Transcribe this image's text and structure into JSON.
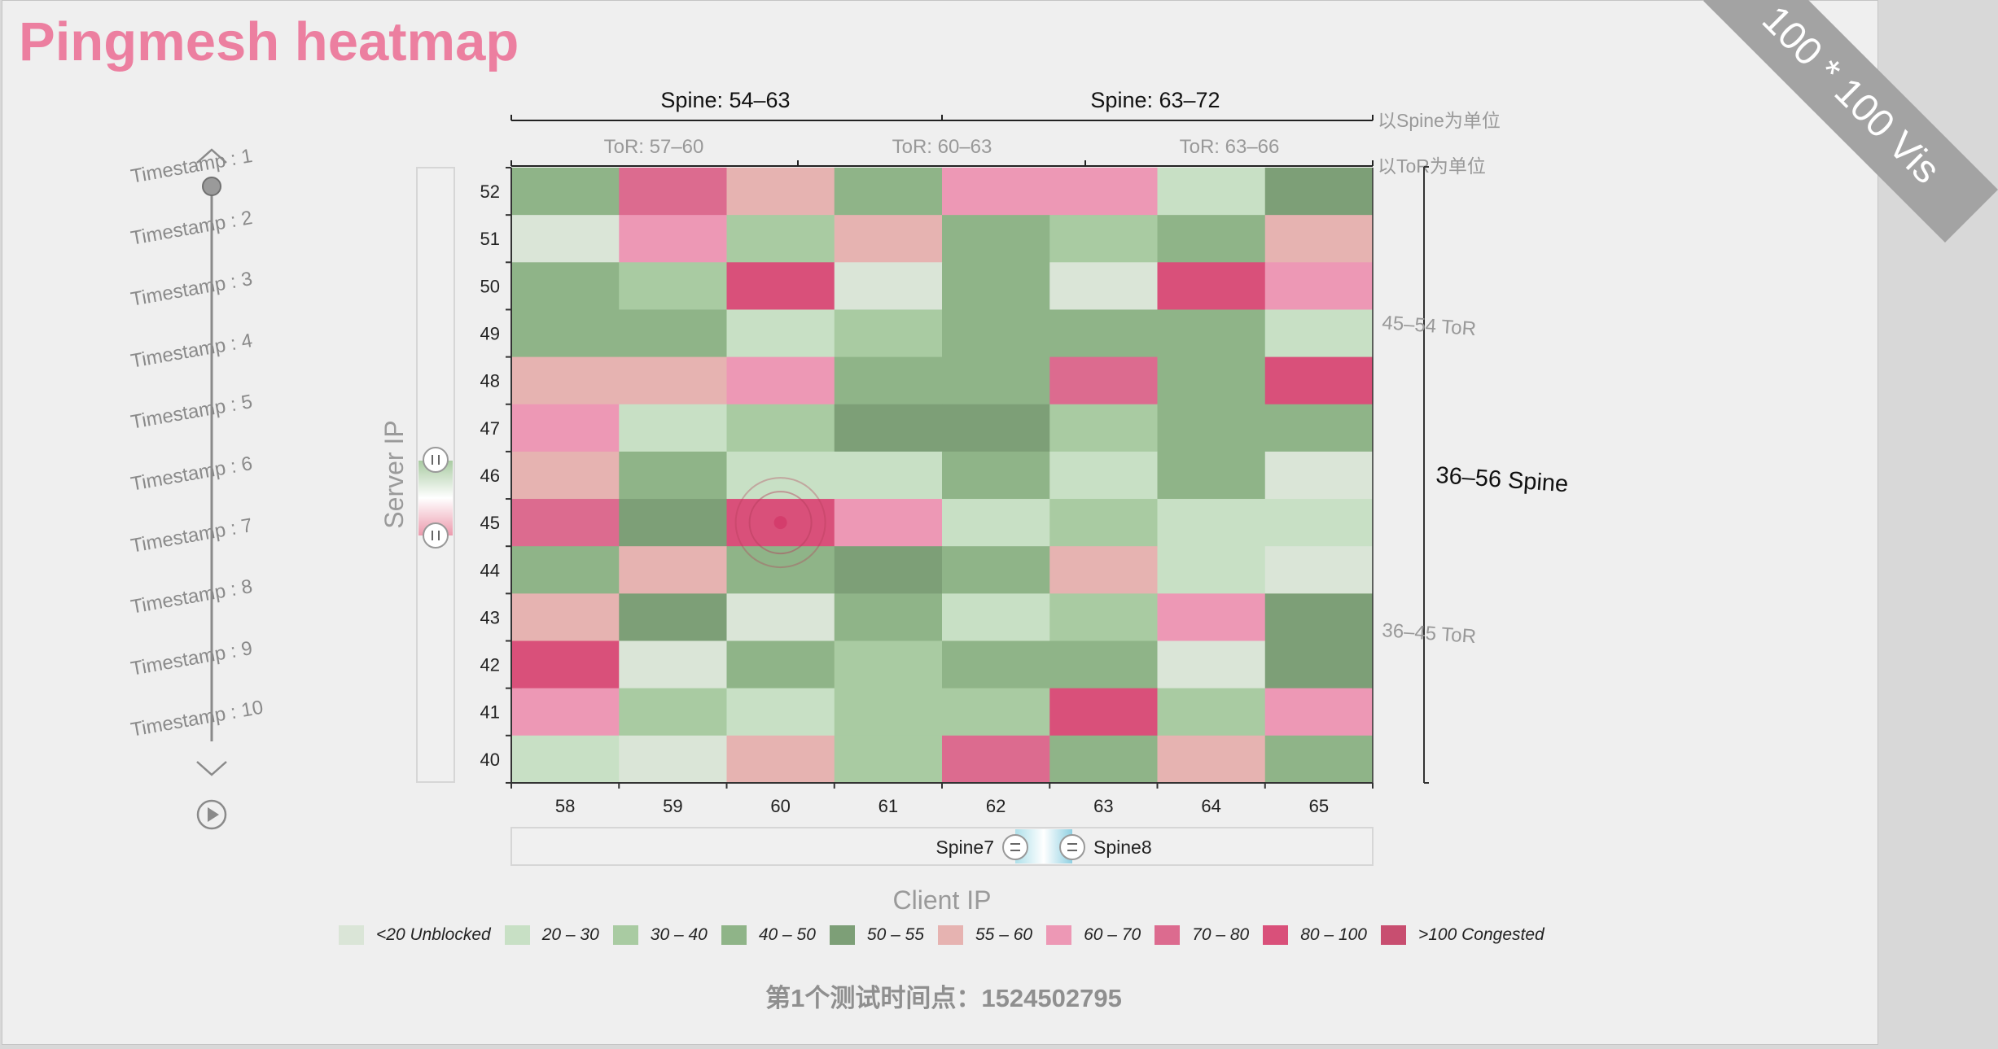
{
  "title": "Pingmesh heatmap",
  "ribbon": "100 * 100 Vis",
  "timeline": {
    "labels": [
      "Timestamp : 1",
      "Timestamp : 2",
      "Timestamp : 3",
      "Timestamp : 4",
      "Timestamp : 5",
      "Timestamp : 6",
      "Timestamp : 7",
      "Timestamp : 8",
      "Timestamp : 9",
      "Timestamp : 10"
    ],
    "current_index": 1
  },
  "top_axis": {
    "spines": [
      "Spine: 54–63",
      "Spine: 63–72"
    ],
    "spine_unit": "以Spine为单位",
    "tors": [
      "ToR: 57–60",
      "ToR: 60–63",
      "ToR: 63–66"
    ],
    "tor_unit": "以ToR为单位"
  },
  "right_axis": {
    "tor_upper": "45–54 ToR",
    "tor_lower": "36–45 ToR",
    "spine": "36–56 Spine"
  },
  "y_slider_label": "Server IP",
  "x_slider": {
    "left": "Spine7",
    "right": "Spine8"
  },
  "chart_data": {
    "type": "heatmap",
    "xlabel": "Client IP",
    "ylabel": "Server IP",
    "x": [
      58,
      59,
      60,
      61,
      62,
      63,
      64,
      65
    ],
    "y": [
      52,
      51,
      50,
      49,
      48,
      47,
      46,
      45,
      44,
      43,
      42,
      41,
      40
    ],
    "values": [
      [
        45,
        75,
        58,
        42,
        66,
        66,
        22,
        52
      ],
      [
        15,
        64,
        35,
        58,
        45,
        33,
        45,
        58
      ],
      [
        40,
        35,
        90,
        15,
        45,
        15,
        80,
        64
      ],
      [
        40,
        44,
        25,
        33,
        45,
        46,
        46,
        25
      ],
      [
        58,
        58,
        66,
        44,
        46,
        78,
        46,
        80
      ],
      [
        64,
        25,
        38,
        52,
        52,
        33,
        45,
        40
      ],
      [
        58,
        42,
        28,
        22,
        40,
        22,
        46,
        15
      ],
      [
        78,
        50,
        88,
        64,
        24,
        33,
        25,
        24
      ],
      [
        40,
        58,
        44,
        50,
        46,
        58,
        28,
        15
      ],
      [
        58,
        50,
        15,
        40,
        25,
        33,
        66,
        50
      ],
      [
        90,
        15,
        44,
        38,
        45,
        44,
        18,
        52
      ],
      [
        64,
        33,
        24,
        33,
        38,
        88,
        38,
        66
      ],
      [
        28,
        15,
        58,
        38,
        75,
        46,
        58,
        42
      ]
    ],
    "highlight": {
      "x": 60,
      "y": 45
    },
    "legend": [
      {
        "label": "<20 Unblocked",
        "color": "#dae5d7"
      },
      {
        "label": "20 – 30",
        "color": "#c8e0c5"
      },
      {
        "label": "30 – 40",
        "color": "#a9cba2"
      },
      {
        "label": "40 – 50",
        "color": "#8fb488"
      },
      {
        "label": "50 – 55",
        "color": "#7d9f77"
      },
      {
        "label": "55 – 60",
        "color": "#e6b3b1"
      },
      {
        "label": "60 – 70",
        "color": "#ed98b5"
      },
      {
        "label": "70 – 80",
        "color": "#dc6b8f"
      },
      {
        "label": "80 – 100",
        "color": "#d9507a"
      },
      {
        "label": ">100 Congested",
        "color": "#c84e70"
      }
    ]
  },
  "footer": "第1个测试时间点：1524502795"
}
